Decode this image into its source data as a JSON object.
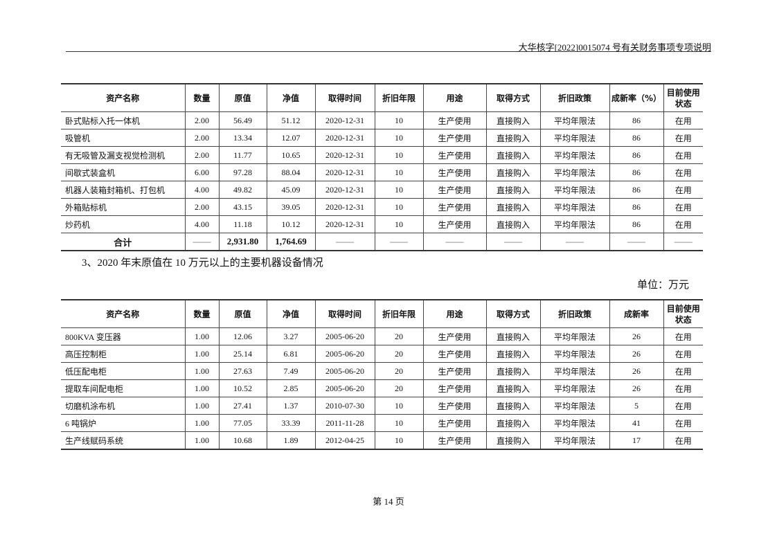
{
  "header": {
    "title": "大华核字[2022]0015074 号有关财务事项专项说明"
  },
  "table1": {
    "columns": [
      "资产名称",
      "数量",
      "原值",
      "净值",
      "取得时间",
      "折旧年限",
      "用途",
      "取得方式",
      "折旧政策",
      "成新率（%）",
      "目前使用状态"
    ],
    "rows": [
      [
        "卧式贴标入托一体机",
        "2.00",
        "56.49",
        "51.12",
        "2020-12-31",
        "10",
        "生产使用",
        "直接购入",
        "平均年限法",
        "86",
        "在用"
      ],
      [
        "吸管机",
        "2.00",
        "13.34",
        "12.07",
        "2020-12-31",
        "10",
        "生产使用",
        "直接购入",
        "平均年限法",
        "86",
        "在用"
      ],
      [
        "有无吸管及漏支视觉检测机",
        "2.00",
        "11.77",
        "10.65",
        "2020-12-31",
        "10",
        "生产使用",
        "直接购入",
        "平均年限法",
        "86",
        "在用"
      ],
      [
        "间歇式装盒机",
        "6.00",
        "97.28",
        "88.04",
        "2020-12-31",
        "10",
        "生产使用",
        "直接购入",
        "平均年限法",
        "86",
        "在用"
      ],
      [
        "机器人装箱封箱机、打包机",
        "4.00",
        "49.82",
        "45.09",
        "2020-12-31",
        "10",
        "生产使用",
        "直接购入",
        "平均年限法",
        "86",
        "在用"
      ],
      [
        "外箱贴标机",
        "2.00",
        "43.15",
        "39.05",
        "2020-12-31",
        "10",
        "生产使用",
        "直接购入",
        "平均年限法",
        "86",
        "在用"
      ],
      [
        "炒药机",
        "4.00",
        "11.18",
        "10.12",
        "2020-12-31",
        "10",
        "生产使用",
        "直接购入",
        "平均年限法",
        "86",
        "在用"
      ]
    ],
    "total": [
      "合计",
      "——",
      "2,931.80",
      "1,764.69",
      "——",
      "——",
      "——",
      "——",
      "——",
      "——",
      "——"
    ]
  },
  "section_title": "3、2020 年末原值在 10 万元以上的主要机器设备情况",
  "unit_label": "单位：万元",
  "table2": {
    "columns": [
      "资产名称",
      "数量",
      "原值",
      "净值",
      "取得时间",
      "折旧年限",
      "用途",
      "取得方式",
      "折旧政策",
      "成新率",
      "目前使用状态"
    ],
    "rows": [
      [
        "800KVA 变压器",
        "1.00",
        "12.06",
        "3.27",
        "2005-06-20",
        "20",
        "生产使用",
        "直接购入",
        "平均年限法",
        "26",
        "在用"
      ],
      [
        "高压控制柜",
        "1.00",
        "25.14",
        "6.81",
        "2005-06-20",
        "20",
        "生产使用",
        "直接购入",
        "平均年限法",
        "26",
        "在用"
      ],
      [
        "低压配电柜",
        "1.00",
        "27.63",
        "7.49",
        "2005-06-20",
        "20",
        "生产使用",
        "直接购入",
        "平均年限法",
        "26",
        "在用"
      ],
      [
        "提取车间配电柜",
        "1.00",
        "10.52",
        "2.85",
        "2005-06-20",
        "20",
        "生产使用",
        "直接购入",
        "平均年限法",
        "26",
        "在用"
      ],
      [
        "切磨机涂布机",
        "1.00",
        "27.41",
        "1.37",
        "2010-07-30",
        "10",
        "生产使用",
        "直接购入",
        "平均年限法",
        "5",
        "在用"
      ],
      [
        "6 吨锅炉",
        "1.00",
        "77.05",
        "33.39",
        "2011-11-28",
        "10",
        "生产使用",
        "直接购入",
        "平均年限法",
        "41",
        "在用"
      ],
      [
        "生产线赋码系统",
        "1.00",
        "10.68",
        "1.89",
        "2012-04-25",
        "10",
        "生产使用",
        "直接购入",
        "平均年限法",
        "17",
        "在用"
      ]
    ]
  },
  "footer": {
    "page": "第 14 页"
  }
}
